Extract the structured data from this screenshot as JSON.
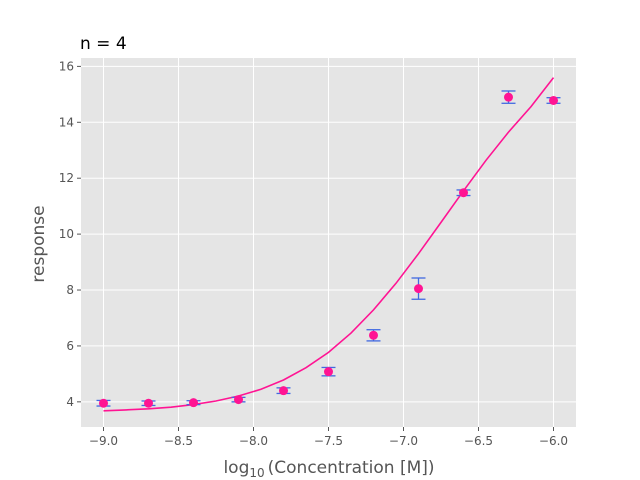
{
  "chart_data": {
    "type": "scatter",
    "title": "n = 4",
    "xlabel_main": "log",
    "xlabel_sub": "10",
    "xlabel_rest": "(Concentration [M])",
    "ylabel": "response",
    "xlim": [
      -9.15,
      -5.85
    ],
    "ylim": [
      3.1,
      16.3
    ],
    "xticks": [
      -9.0,
      -8.5,
      -8.0,
      -7.5,
      -7.0,
      -6.5,
      -6.0
    ],
    "xtick_labels": [
      "−9.0",
      "−8.5",
      "−8.0",
      "−7.5",
      "−7.0",
      "−6.5",
      "−6.0"
    ],
    "yticks": [
      4,
      6,
      8,
      10,
      12,
      14,
      16
    ],
    "ytick_labels": [
      "4",
      "6",
      "8",
      "10",
      "12",
      "14",
      "16"
    ],
    "grid": true,
    "series": [
      {
        "kind": "points_with_errorbars",
        "x": [
          -9.0,
          -8.7,
          -8.4,
          -8.1,
          -7.8,
          -7.5,
          -7.2,
          -6.9,
          -6.6,
          -6.3,
          -6.0
        ],
        "y": [
          3.95,
          3.95,
          3.97,
          4.08,
          4.4,
          5.08,
          6.38,
          8.05,
          11.48,
          14.9,
          14.78
        ],
        "err": [
          0.1,
          0.08,
          0.07,
          0.08,
          0.1,
          0.15,
          0.2,
          0.38,
          0.1,
          0.22,
          0.1
        ]
      },
      {
        "kind": "fit_curve",
        "x": [
          -9.0,
          -8.85,
          -8.7,
          -8.55,
          -8.4,
          -8.25,
          -8.1,
          -7.95,
          -7.8,
          -7.65,
          -7.5,
          -7.35,
          -7.2,
          -7.05,
          -6.9,
          -6.75,
          -6.6,
          -6.45,
          -6.3,
          -6.15,
          -6.0
        ],
        "y": [
          3.68,
          3.71,
          3.75,
          3.81,
          3.9,
          4.03,
          4.21,
          4.45,
          4.78,
          5.22,
          5.77,
          6.46,
          7.29,
          8.24,
          9.3,
          10.42,
          11.55,
          12.64,
          13.65,
          14.56,
          15.6
        ]
      }
    ],
    "colors": {
      "plot_bg": "#e5e5e5",
      "grid": "#ffffff",
      "points": "#ff1493",
      "curve": "#ff1493",
      "errorbars": "#4169e1"
    }
  }
}
